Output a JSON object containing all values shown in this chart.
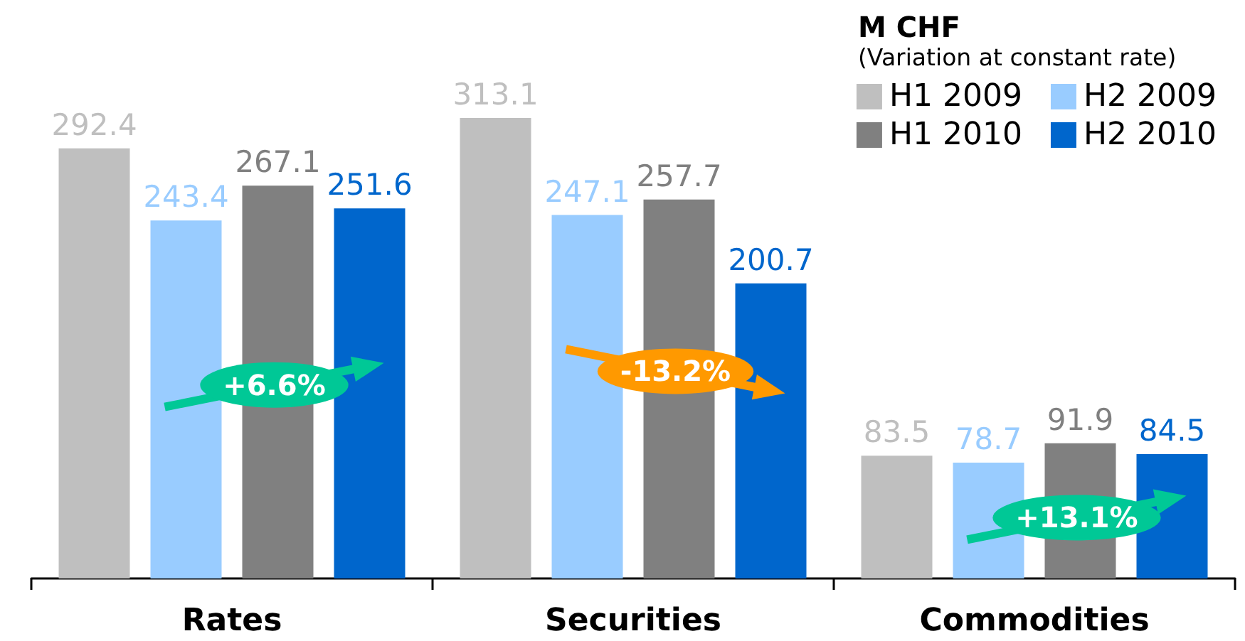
{
  "chart_data": {
    "type": "bar",
    "categories": [
      "Rates",
      "Securities",
      "Commodities"
    ],
    "series": [
      {
        "name": "H1 2009",
        "color": "#bfbfbf",
        "values": [
          292.4,
          313.1,
          83.5
        ]
      },
      {
        "name": "H2 2009",
        "color": "#99ccff",
        "values": [
          243.4,
          247.1,
          78.7
        ]
      },
      {
        "name": "H1 2010",
        "color": "#808080",
        "values": [
          267.1,
          257.7,
          91.9
        ]
      },
      {
        "name": "H2 2010",
        "color": "#0066cc",
        "values": [
          251.6,
          200.7,
          84.5
        ]
      }
    ],
    "data_labels": true,
    "legend": "top right",
    "legend_title": "M CHF",
    "subtitle": "(Variation at constant rate)",
    "tick_labels": "x",
    "annotations": [
      "+6.6%",
      "-13.2%",
      "+13.1%"
    ]
  }
}
